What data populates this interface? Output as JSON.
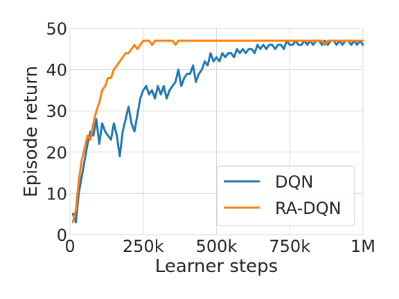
{
  "chart_data": {
    "type": "line",
    "xlabel": "Learner steps",
    "ylabel": "Episode return",
    "xlim": [
      0,
      1000000
    ],
    "ylim": [
      0,
      50
    ],
    "grid": true,
    "legend_position": "lower-right",
    "x_ticks": [
      {
        "value": 0,
        "label": "0"
      },
      {
        "value": 250000,
        "label": "250k"
      },
      {
        "value": 500000,
        "label": "500k"
      },
      {
        "value": 750000,
        "label": "750k"
      },
      {
        "value": 1000000,
        "label": "1M"
      }
    ],
    "y_ticks": [
      {
        "value": 0,
        "label": "0"
      },
      {
        "value": 10,
        "label": "10"
      },
      {
        "value": 20,
        "label": "20"
      },
      {
        "value": 30,
        "label": "30"
      },
      {
        "value": 40,
        "label": "40"
      },
      {
        "value": 50,
        "label": "50"
      }
    ],
    "series": [
      {
        "name": "DQN",
        "color": "#1f77b4",
        "points": [
          [
            10000,
            5
          ],
          [
            20000,
            3
          ],
          [
            30000,
            10
          ],
          [
            40000,
            14
          ],
          [
            50000,
            18
          ],
          [
            60000,
            22
          ],
          [
            70000,
            25
          ],
          [
            80000,
            24
          ],
          [
            90000,
            28
          ],
          [
            100000,
            22
          ],
          [
            110000,
            27
          ],
          [
            120000,
            25
          ],
          [
            130000,
            24
          ],
          [
            140000,
            23
          ],
          [
            150000,
            27
          ],
          [
            160000,
            24
          ],
          [
            170000,
            19
          ],
          [
            180000,
            25
          ],
          [
            190000,
            28
          ],
          [
            200000,
            31
          ],
          [
            210000,
            27
          ],
          [
            220000,
            25
          ],
          [
            230000,
            29
          ],
          [
            240000,
            33
          ],
          [
            250000,
            35
          ],
          [
            260000,
            36
          ],
          [
            270000,
            34
          ],
          [
            280000,
            35
          ],
          [
            290000,
            33
          ],
          [
            300000,
            36
          ],
          [
            310000,
            34
          ],
          [
            320000,
            36
          ],
          [
            330000,
            33
          ],
          [
            340000,
            35
          ],
          [
            350000,
            36
          ],
          [
            360000,
            37
          ],
          [
            370000,
            40
          ],
          [
            380000,
            36
          ],
          [
            390000,
            38
          ],
          [
            400000,
            39
          ],
          [
            410000,
            39
          ],
          [
            420000,
            41
          ],
          [
            430000,
            37
          ],
          [
            440000,
            39
          ],
          [
            450000,
            40
          ],
          [
            460000,
            42
          ],
          [
            470000,
            41
          ],
          [
            480000,
            44
          ],
          [
            490000,
            42
          ],
          [
            500000,
            43
          ],
          [
            510000,
            42
          ],
          [
            520000,
            44
          ],
          [
            530000,
            43
          ],
          [
            540000,
            44
          ],
          [
            550000,
            44
          ],
          [
            560000,
            43
          ],
          [
            570000,
            45
          ],
          [
            580000,
            44
          ],
          [
            590000,
            45
          ],
          [
            600000,
            44
          ],
          [
            610000,
            45
          ],
          [
            620000,
            45
          ],
          [
            630000,
            44
          ],
          [
            640000,
            46
          ],
          [
            650000,
            45
          ],
          [
            660000,
            46
          ],
          [
            670000,
            45
          ],
          [
            680000,
            46
          ],
          [
            690000,
            46
          ],
          [
            700000,
            45
          ],
          [
            710000,
            46
          ],
          [
            720000,
            46
          ],
          [
            730000,
            45
          ],
          [
            740000,
            47
          ],
          [
            750000,
            46
          ],
          [
            760000,
            46
          ],
          [
            770000,
            47
          ],
          [
            780000,
            46
          ],
          [
            790000,
            46
          ],
          [
            800000,
            47
          ],
          [
            810000,
            46
          ],
          [
            820000,
            47
          ],
          [
            830000,
            46
          ],
          [
            840000,
            47
          ],
          [
            850000,
            47
          ],
          [
            860000,
            46
          ],
          [
            870000,
            47
          ],
          [
            880000,
            46
          ],
          [
            890000,
            47
          ],
          [
            900000,
            47
          ],
          [
            910000,
            46
          ],
          [
            920000,
            47
          ],
          [
            930000,
            46
          ],
          [
            940000,
            47
          ],
          [
            950000,
            47
          ],
          [
            960000,
            46
          ],
          [
            970000,
            47
          ],
          [
            980000,
            46
          ],
          [
            990000,
            47
          ],
          [
            1000000,
            46
          ]
        ]
      },
      {
        "name": "RA-DQN",
        "color": "#ff7f0e",
        "points": [
          [
            10000,
            3
          ],
          [
            20000,
            6
          ],
          [
            30000,
            13
          ],
          [
            40000,
            18
          ],
          [
            50000,
            21
          ],
          [
            60000,
            24
          ],
          [
            70000,
            23
          ],
          [
            80000,
            27
          ],
          [
            90000,
            30
          ],
          [
            100000,
            32
          ],
          [
            110000,
            35
          ],
          [
            120000,
            36
          ],
          [
            130000,
            38
          ],
          [
            140000,
            38
          ],
          [
            150000,
            40
          ],
          [
            160000,
            41
          ],
          [
            170000,
            42
          ],
          [
            180000,
            43
          ],
          [
            190000,
            44
          ],
          [
            200000,
            44
          ],
          [
            210000,
            45
          ],
          [
            220000,
            46
          ],
          [
            230000,
            45
          ],
          [
            240000,
            46
          ],
          [
            250000,
            47
          ],
          [
            260000,
            47
          ],
          [
            270000,
            47
          ],
          [
            280000,
            46
          ],
          [
            290000,
            47
          ],
          [
            300000,
            47
          ],
          [
            310000,
            47
          ],
          [
            320000,
            47
          ],
          [
            330000,
            47
          ],
          [
            340000,
            47
          ],
          [
            350000,
            47
          ],
          [
            360000,
            46
          ],
          [
            370000,
            47
          ],
          [
            380000,
            47
          ],
          [
            390000,
            47
          ],
          [
            400000,
            47
          ],
          [
            410000,
            47
          ],
          [
            420000,
            47
          ],
          [
            430000,
            47
          ],
          [
            440000,
            47
          ],
          [
            450000,
            47
          ],
          [
            460000,
            47
          ],
          [
            470000,
            47
          ],
          [
            480000,
            47
          ],
          [
            490000,
            47
          ],
          [
            500000,
            47
          ],
          [
            510000,
            47
          ],
          [
            520000,
            47
          ],
          [
            530000,
            47
          ],
          [
            540000,
            47
          ],
          [
            550000,
            47
          ],
          [
            560000,
            47
          ],
          [
            570000,
            47
          ],
          [
            580000,
            47
          ],
          [
            590000,
            47
          ],
          [
            600000,
            47
          ],
          [
            610000,
            47
          ],
          [
            620000,
            47
          ],
          [
            630000,
            47
          ],
          [
            640000,
            47
          ],
          [
            650000,
            47
          ],
          [
            660000,
            47
          ],
          [
            670000,
            47
          ],
          [
            680000,
            47
          ],
          [
            690000,
            47
          ],
          [
            700000,
            47
          ],
          [
            710000,
            47
          ],
          [
            720000,
            47
          ],
          [
            730000,
            47
          ],
          [
            740000,
            47
          ],
          [
            750000,
            47
          ],
          [
            760000,
            47
          ],
          [
            770000,
            47
          ],
          [
            780000,
            47
          ],
          [
            790000,
            47
          ],
          [
            800000,
            47
          ],
          [
            810000,
            47
          ],
          [
            820000,
            47
          ],
          [
            830000,
            47
          ],
          [
            840000,
            47
          ],
          [
            850000,
            47
          ],
          [
            860000,
            47
          ],
          [
            870000,
            46
          ],
          [
            880000,
            47
          ],
          [
            890000,
            47
          ],
          [
            900000,
            47
          ],
          [
            910000,
            47
          ],
          [
            920000,
            47
          ],
          [
            930000,
            47
          ],
          [
            940000,
            47
          ],
          [
            950000,
            47
          ],
          [
            960000,
            47
          ],
          [
            970000,
            47
          ],
          [
            980000,
            47
          ],
          [
            990000,
            47
          ],
          [
            1000000,
            47
          ]
        ]
      }
    ]
  }
}
